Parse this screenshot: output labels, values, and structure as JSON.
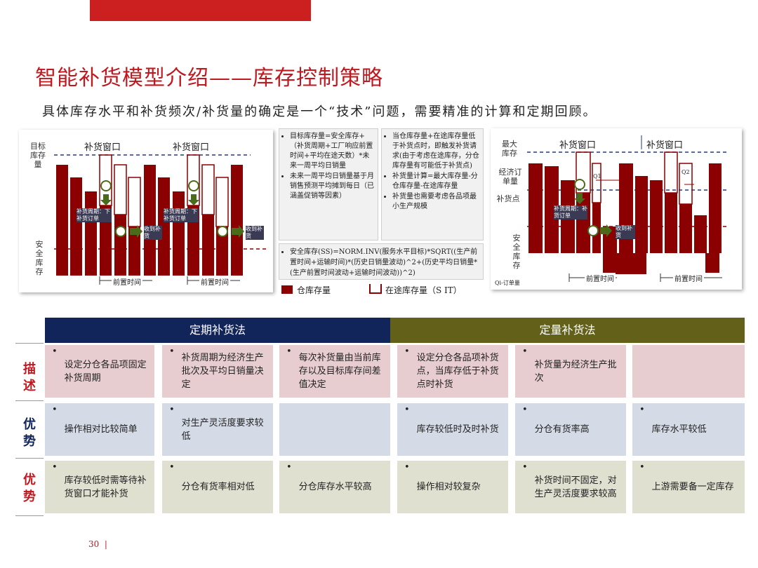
{
  "title": "智能补货模型介绍——库存控制策略",
  "subtitle": "具体库存水平和补货频次/补货量的确定是一个“技术”问题，需要精准的计算和定期回顾。",
  "left_chart": {
    "y_label_target": "目标库存量",
    "y_label_safety": "安全库存",
    "window_label": "补货窗口",
    "lead_time": "前置时间",
    "cycle_note": "补货周期：下补货订单",
    "receive_note": "收到补货"
  },
  "middle_box_a": [
    "目标库存量=安全库存+（补货周期+工厂响应前置时间+平均在途天数）*未来一周平均日销量",
    "未来一周平均日销量基于月销售预测平均摊到每日（已涵盖促销等因素）"
  ],
  "middle_box_b": [
    "当仓库存量+在途库存量低于补货点时，即触发补货请求(由于考虑在途库存，分仓库存量有可能低于补货点)",
    "补货量计算=最大库存量-分仓库存量-在途库存量",
    "补货量也需要考虑各品项最小生产规模"
  ],
  "formula_box": "安全库存(SS)=NORM.INV(服务水平目标)*SQRT((生产前置时间+运输时间)*(历史日销量波动)^2+(历史平均日销量*(生产前置时间波动+运输时间波动))^2)",
  "legend": {
    "warehouse": "仓库存量",
    "transit": "在途库存量（S IT）"
  },
  "right_chart": {
    "max_label": "最大库存",
    "eoq_label": "经济订单量",
    "reorder_label": "补货点",
    "safety_label": "安全库存",
    "window_label": "补货窗口",
    "lead_time": "前置时间",
    "cycle_note": "补货周期：补货订单",
    "receive_note": "收到补货",
    "q1": "Q1",
    "q2": "Q2",
    "qi_note": "Qi-订单量"
  },
  "table": {
    "header_a": "定期补货法",
    "header_b": "定量补货法",
    "rows": [
      {
        "label": "描述",
        "color": "#c0181f",
        "cells": [
          "设定分仓各品项固定补货周期",
          "补货周期为经济生产批次及平均日销量决定",
          "每次补货量由当前库存以及目标库存间差值决定",
          "设定分仓各品项补货点，当库存低于补货点时补货",
          "补货量为经济生产批次",
          ""
        ]
      },
      {
        "label": "优势",
        "color": "#12255a",
        "cells": [
          "操作相对比较简单",
          "对生产灵活度要求较低",
          "",
          "库存较低时及时补货",
          "分仓有货率高",
          "库存水平较低"
        ]
      },
      {
        "label": "优势",
        "color": "#c0181f",
        "cells": [
          "库存较低时需等待补货窗口才能补货",
          "分仓有货率相对低",
          "分仓库存水平较高",
          "操作相对较复杂",
          "补货时间不固定，对生产灵活度要求较高",
          "上游需要备一定库存"
        ]
      }
    ]
  },
  "page_number": "30",
  "colors": {
    "accent": "#c0181f",
    "bar": "#8b0000",
    "periodic": "#12255a",
    "quantity": "#63601a"
  }
}
